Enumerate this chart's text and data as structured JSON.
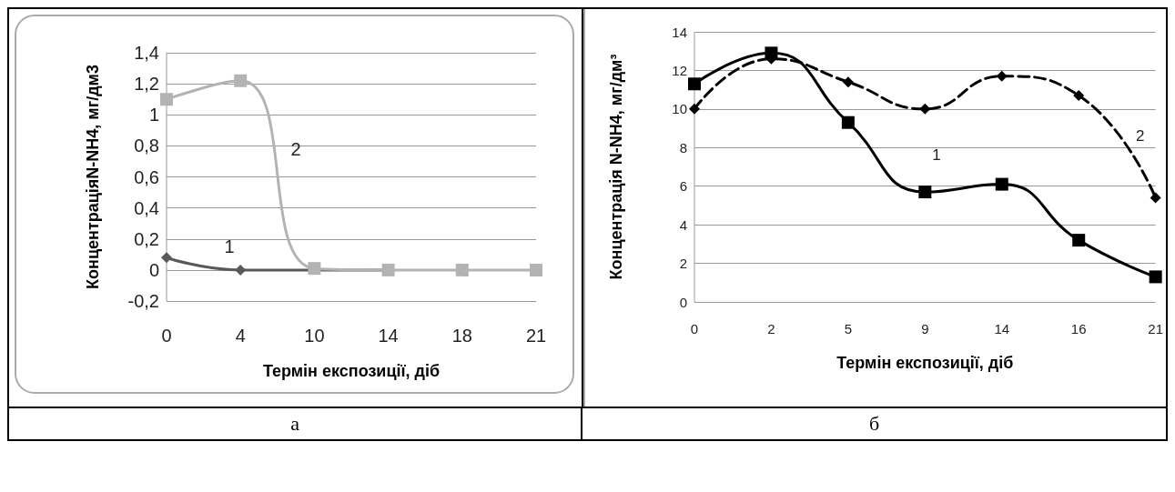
{
  "chart_data": [
    {
      "type": "line",
      "xlabel": "Термін експозиції, діб",
      "ylabel": "КонцентраціяN-NH4, мг/дм3",
      "categories": [
        "0",
        "4",
        "10",
        "14",
        "18",
        "21"
      ],
      "ylim": [
        -0.2,
        1.4
      ],
      "yticks": [
        {
          "value": -0.2,
          "label": "-0,2"
        },
        0,
        {
          "value": 0.2,
          "label": "0,2"
        },
        {
          "value": 0.4,
          "label": "0,4"
        },
        {
          "value": 0.6,
          "label": "0,6"
        },
        {
          "value": 0.8,
          "label": "0,8"
        },
        1,
        {
          "value": 1.2,
          "label": "1,2"
        },
        {
          "value": 1.4,
          "label": "1,4"
        }
      ],
      "grid": "y",
      "legend": false,
      "annotations": [
        "а"
      ],
      "series": [
        {
          "name": "1",
          "color": "#595959",
          "marker": "diamond",
          "values": [
            0.08,
            0,
            null,
            0,
            null,
            null
          ]
        },
        {
          "name": "2",
          "color": "#b3b3b3",
          "marker": "square",
          "values": [
            1.1,
            1.22,
            0.01,
            0,
            0,
            0
          ]
        }
      ]
    },
    {
      "type": "line",
      "xlabel": "Термін експозиції, діб",
      "ylabel": "Концентрація N-NH4, мг/дм³",
      "categories": [
        "0",
        "2",
        "5",
        "9",
        "14",
        "16",
        "21"
      ],
      "ylim": [
        0,
        14
      ],
      "yticks": [
        0,
        2,
        4,
        6,
        8,
        10,
        12,
        14
      ],
      "grid": "y",
      "legend": false,
      "annotations": [
        "б"
      ],
      "series": [
        {
          "name": "1",
          "color": "#000000",
          "marker": "square",
          "line_style": "solid",
          "values": [
            11.3,
            12.9,
            9.3,
            5.7,
            6.1,
            3.2,
            1.3
          ]
        },
        {
          "name": "2",
          "color": "#000000",
          "marker": "diamond",
          "line_style": "dashed",
          "values": [
            10,
            12.6,
            11.4,
            10,
            11.7,
            10.7,
            5.4
          ]
        }
      ]
    }
  ]
}
